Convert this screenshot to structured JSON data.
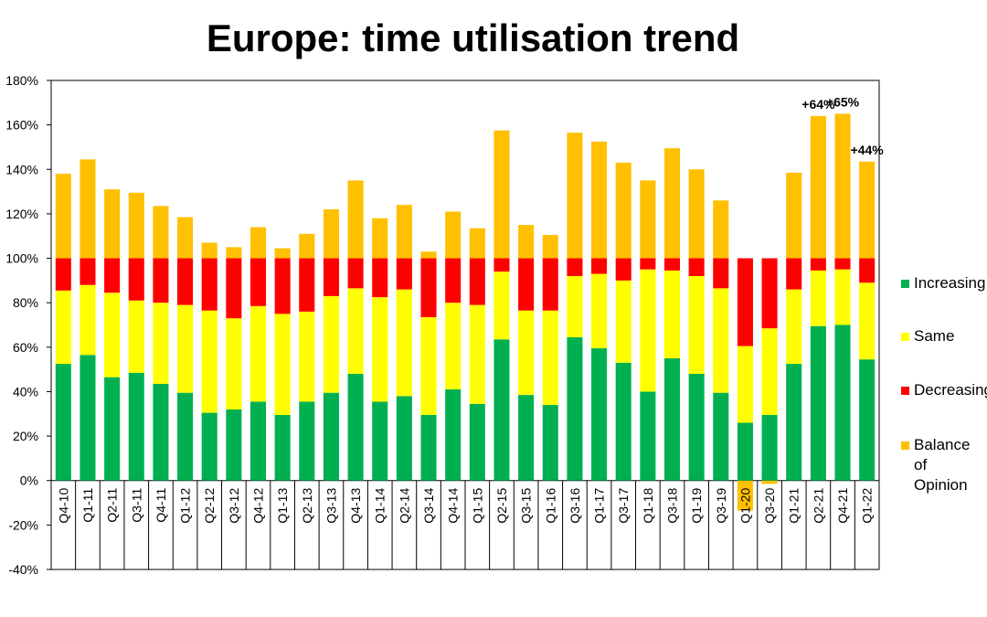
{
  "chart_data": {
    "type": "bar",
    "stacked": true,
    "title": "Europe: time utilisation trend",
    "ylim": [
      -40,
      180
    ],
    "yticks": [
      "-40%",
      "-20%",
      "0%",
      "20%",
      "40%",
      "60%",
      "80%",
      "100%",
      "120%",
      "140%",
      "160%",
      "180%"
    ],
    "grid": false,
    "legend_position": "right",
    "categories": [
      "Q4-10",
      "Q1-11",
      "Q2-11",
      "Q3-11",
      "Q4-11",
      "Q1-12",
      "Q2-12",
      "Q3-12",
      "Q4-12",
      "Q1-13",
      "Q2-13",
      "Q3-13",
      "Q4-13",
      "Q1-14",
      "Q2-14",
      "Q3-14",
      "Q4-14",
      "Q1-15",
      "Q2-15",
      "Q3-15",
      "Q1-16",
      "Q3-16",
      "Q1-17",
      "Q3-17",
      "Q1-18",
      "Q3-18",
      "Q1-19",
      "Q3-19",
      "Q1-20",
      "Q3-20",
      "Q1-21",
      "Q2-21",
      "Q4-21",
      "Q1-22"
    ],
    "series": [
      {
        "name": "Increasing",
        "color": "#00b050",
        "values": [
          52.5,
          56.5,
          46.5,
          48.5,
          43.5,
          39.5,
          30.5,
          32.0,
          35.5,
          29.5,
          35.5,
          39.5,
          48.0,
          35.5,
          38.0,
          29.5,
          41.0,
          34.5,
          63.5,
          38.5,
          34.0,
          64.5,
          59.5,
          53.0,
          40.0,
          55.0,
          48.0,
          39.5,
          26.0,
          29.5,
          52.5,
          69.5,
          70.0,
          54.5
        ]
      },
      {
        "name": "Same",
        "color": "#ffff00",
        "values": [
          33.0,
          31.5,
          38.0,
          32.5,
          36.5,
          39.5,
          46.0,
          41.0,
          43.0,
          45.5,
          40.5,
          43.5,
          38.5,
          47.0,
          48.0,
          44.0,
          39.0,
          44.5,
          30.5,
          38.0,
          42.5,
          27.5,
          33.5,
          37.0,
          55.0,
          39.5,
          44.0,
          47.0,
          34.5,
          39.0,
          33.5,
          25.0,
          25.0,
          34.5
        ]
      },
      {
        "name": "Decreasing",
        "color": "#ff0000",
        "values": [
          14.5,
          12.0,
          15.5,
          19.0,
          20.0,
          21.0,
          23.5,
          27.0,
          21.5,
          25.0,
          24.0,
          17.0,
          13.5,
          17.5,
          14.0,
          26.5,
          20.0,
          21.0,
          6.0,
          23.5,
          23.5,
          8.0,
          7.0,
          10.0,
          5.0,
          5.5,
          8.0,
          13.5,
          39.5,
          31.5,
          14.0,
          5.5,
          5.0,
          11.0
        ]
      },
      {
        "name": "Balance of Opinion",
        "color": "#ffc000",
        "values": [
          38.0,
          44.5,
          31.0,
          29.5,
          23.5,
          18.5,
          7.0,
          5.0,
          14.0,
          4.5,
          11.0,
          22.0,
          35.0,
          18.0,
          24.0,
          3.0,
          21.0,
          13.5,
          57.5,
          15.0,
          10.5,
          56.5,
          52.5,
          43.0,
          35.0,
          49.5,
          40.0,
          26.0,
          -13.5,
          -1.5,
          38.5,
          64.0,
          65.0,
          43.5
        ]
      }
    ],
    "annotations": [
      {
        "category": "Q2-21",
        "text": "+64%"
      },
      {
        "category": "Q4-21",
        "text": "+65%"
      },
      {
        "category": "Q1-22",
        "text": "+44%"
      }
    ]
  },
  "legend": {
    "items": [
      {
        "label": "Increasing",
        "color": "#00b050"
      },
      {
        "label": "Same",
        "color": "#ffff00"
      },
      {
        "label": "Decreasing",
        "color": "#ff0000"
      },
      {
        "label": "Balance of\nOpinion",
        "color": "#ffc000"
      }
    ]
  }
}
